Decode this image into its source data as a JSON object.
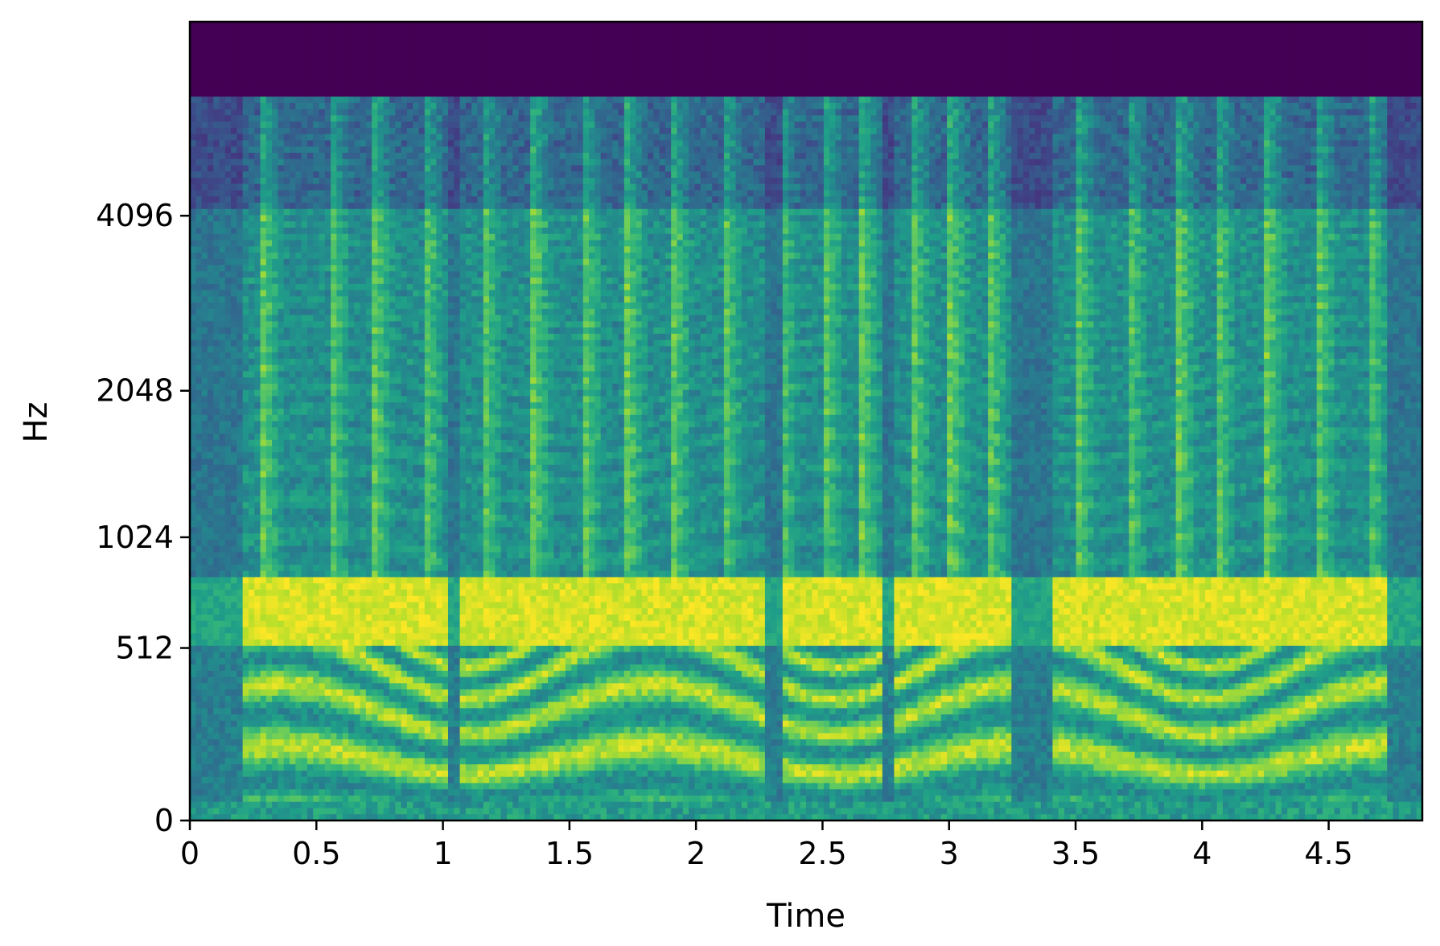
{
  "chart_data": {
    "type": "heatmap",
    "title": "",
    "xlabel": "Time",
    "ylabel": "Hz",
    "xlim": [
      0,
      4.87
    ],
    "ylim": [
      0,
      8192
    ],
    "y_scale": "mel",
    "x_ticks": [
      {
        "value": 0,
        "label": "0"
      },
      {
        "value": 0.5,
        "label": "0.5"
      },
      {
        "value": 1,
        "label": "1"
      },
      {
        "value": 1.5,
        "label": "1.5"
      },
      {
        "value": 2,
        "label": "2"
      },
      {
        "value": 2.5,
        "label": "2.5"
      },
      {
        "value": 3,
        "label": "3"
      },
      {
        "value": 3.5,
        "label": "3.5"
      },
      {
        "value": 4,
        "label": "4"
      },
      {
        "value": 4.5,
        "label": "4.5"
      }
    ],
    "y_ticks": [
      {
        "value": 0,
        "label": "0"
      },
      {
        "value": 512,
        "label": "512"
      },
      {
        "value": 1024,
        "label": "1024"
      },
      {
        "value": 2048,
        "label": "2048"
      },
      {
        "value": 4096,
        "label": "4096"
      }
    ],
    "colormap": "viridis",
    "grid": false,
    "legend": "none",
    "bands": [
      {
        "f_low": 512,
        "f_high": 810,
        "level": "saturated (yellow)"
      },
      {
        "f_low": 6300,
        "f_high": 8192,
        "level": "minimum (dark purple)"
      }
    ]
  },
  "colors": {
    "viridis": [
      "#440154",
      "#482878",
      "#3e4989",
      "#31688e",
      "#26828e",
      "#1f9e89",
      "#35b779",
      "#6ece58",
      "#b5de2b",
      "#fde725"
    ]
  }
}
